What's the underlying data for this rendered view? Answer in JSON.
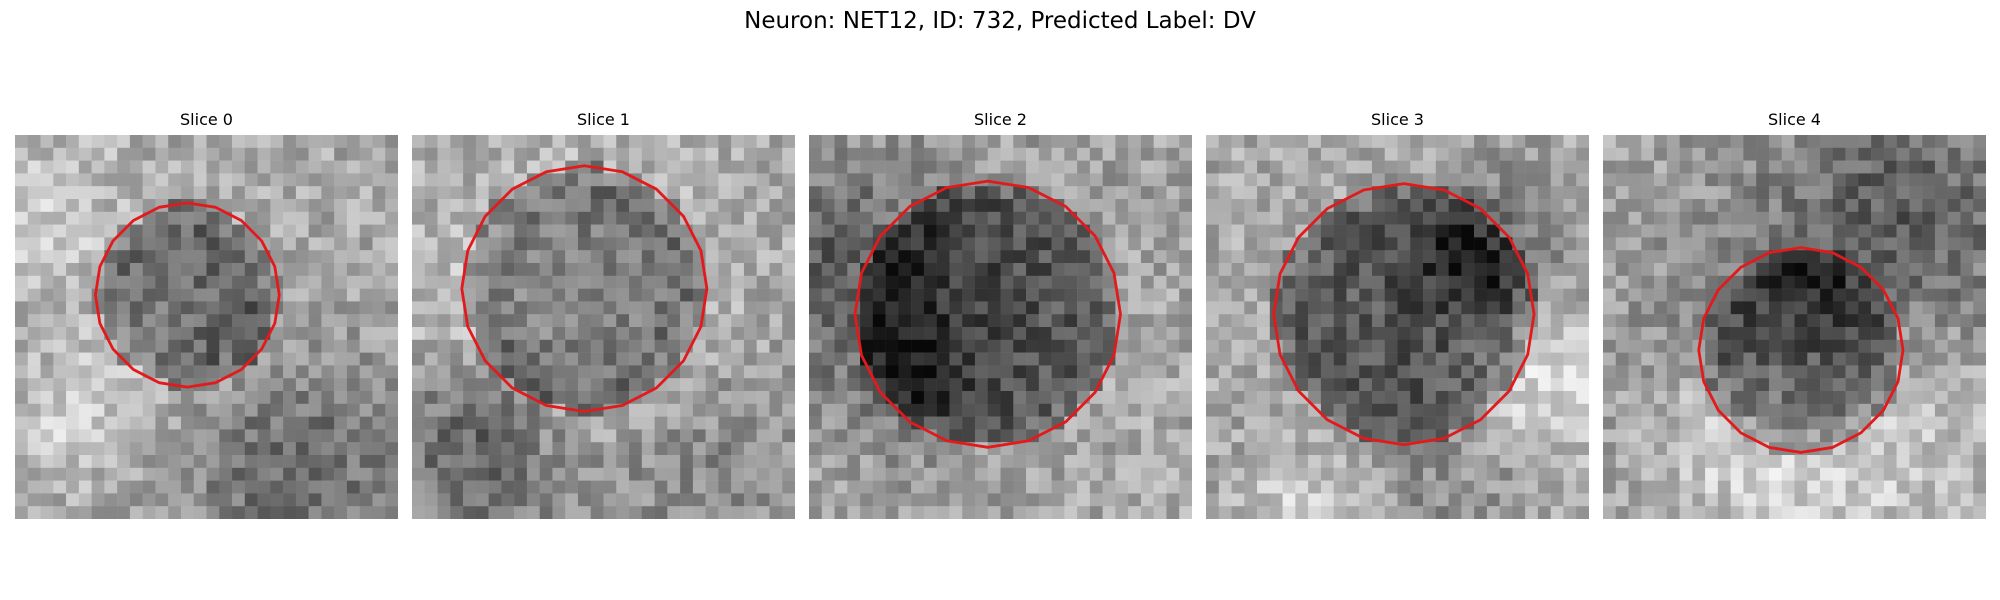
{
  "figure": {
    "title": "Neuron: NET12, ID: 732, Predicted Label: DV"
  },
  "colors": {
    "contour": "#e31a1c",
    "colormap": "gray"
  },
  "panels": [
    {
      "title": "Slice 0",
      "icon": "grayscale-patch-icon",
      "seed": 11
    },
    {
      "title": "Slice 1",
      "icon": "grayscale-patch-icon",
      "seed": 23
    },
    {
      "title": "Slice 2",
      "icon": "grayscale-patch-icon",
      "seed": 37
    },
    {
      "title": "Slice 3",
      "icon": "grayscale-patch-icon",
      "seed": 41
    },
    {
      "title": "Slice 4",
      "icon": "grayscale-patch-icon",
      "seed": 59
    }
  ]
}
